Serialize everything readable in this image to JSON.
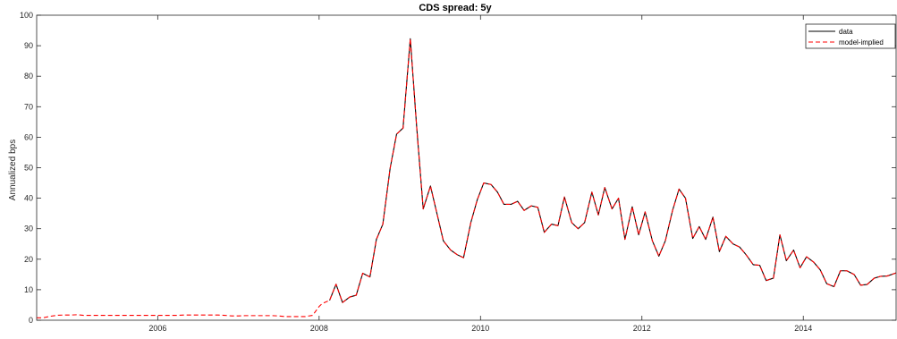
{
  "chart_data": {
    "type": "line",
    "title": "CDS spread: 5y",
    "xlabel": "",
    "ylabel": "Annualized bps",
    "xlim": [
      2004.5,
      2015.15
    ],
    "ylim": [
      0,
      100
    ],
    "x_ticks": [
      2006,
      2008,
      2010,
      2012,
      2014
    ],
    "y_ticks": [
      0,
      10,
      20,
      30,
      40,
      50,
      60,
      70,
      80,
      90,
      100
    ],
    "grid": false,
    "legend_position": "top-right",
    "series": [
      {
        "name": "data",
        "color": "#000000",
        "style": "solid",
        "x": [
          2008.13,
          2008.21,
          2008.29,
          2008.38,
          2008.46,
          2008.54,
          2008.63,
          2008.71,
          2008.79,
          2008.88,
          2008.96,
          2009.04,
          2009.13,
          2009.21,
          2009.29,
          2009.38,
          2009.46,
          2009.54,
          2009.63,
          2009.71,
          2009.79,
          2009.88,
          2009.96,
          2010.04,
          2010.13,
          2010.21,
          2010.29,
          2010.38,
          2010.46,
          2010.54,
          2010.63,
          2010.71,
          2010.79,
          2010.88,
          2010.96,
          2011.04,
          2011.13,
          2011.21,
          2011.29,
          2011.38,
          2011.46,
          2011.54,
          2011.63,
          2011.71,
          2011.79,
          2011.88,
          2011.96,
          2012.04,
          2012.13,
          2012.21,
          2012.29,
          2012.38,
          2012.46,
          2012.54,
          2012.63,
          2012.71,
          2012.79,
          2012.88,
          2012.96,
          2013.04,
          2013.13,
          2013.21,
          2013.29,
          2013.38,
          2013.46,
          2013.54,
          2013.63,
          2013.71,
          2013.79,
          2013.88,
          2013.96,
          2014.04,
          2014.13,
          2014.21,
          2014.29,
          2014.38,
          2014.46,
          2014.54,
          2014.63,
          2014.71,
          2014.79,
          2014.88,
          2014.96,
          2015.04,
          2015.15
        ],
        "y": [
          6.5,
          11.8,
          5.8,
          7.6,
          8.2,
          15.4,
          14.2,
          26.5,
          31.5,
          49.8,
          61.0,
          63.0,
          92.3,
          63.0,
          36.5,
          44.0,
          35.0,
          26.0,
          23.0,
          21.5,
          20.5,
          32.0,
          39.5,
          45.0,
          44.5,
          42.0,
          38.0,
          38.0,
          39.0,
          36.0,
          37.5,
          37.0,
          28.8,
          31.5,
          31.0,
          40.4,
          32.0,
          30.0,
          32.0,
          42.0,
          34.5,
          43.5,
          36.5,
          40.0,
          26.5,
          37.2,
          28.0,
          35.5,
          26.0,
          21.0,
          26.0,
          36.0,
          43.0,
          40.0,
          26.8,
          30.7,
          26.5,
          33.8,
          22.5,
          27.5,
          25.0,
          24.0,
          21.5,
          18.2,
          18.0,
          13.0,
          13.8,
          28.0,
          19.5,
          23.0,
          17.2,
          20.8,
          19.0,
          16.5,
          12.0,
          11.0,
          16.2,
          16.2,
          15.0,
          11.5,
          11.7,
          13.8,
          14.4,
          14.5,
          15.5
        ]
      },
      {
        "name": "model-implied",
        "color": "#ff0000",
        "style": "dashed",
        "x": [
          2004.5,
          2004.58,
          2004.67,
          2004.75,
          2004.83,
          2004.92,
          2005.0,
          2005.08,
          2005.17,
          2005.25,
          2005.33,
          2005.42,
          2005.5,
          2005.58,
          2005.67,
          2005.75,
          2005.83,
          2005.92,
          2006.0,
          2006.08,
          2006.17,
          2006.25,
          2006.33,
          2006.42,
          2006.5,
          2006.58,
          2006.67,
          2006.75,
          2006.83,
          2006.92,
          2007.0,
          2007.08,
          2007.17,
          2007.25,
          2007.33,
          2007.42,
          2007.5,
          2007.58,
          2007.67,
          2007.75,
          2007.83,
          2007.92,
          2008.0,
          2008.04,
          2008.13,
          2008.21,
          2008.29,
          2008.38,
          2008.46,
          2008.54,
          2008.63,
          2008.71,
          2008.79,
          2008.88,
          2008.96,
          2009.04,
          2009.13,
          2009.21,
          2009.29,
          2009.38,
          2009.46,
          2009.54,
          2009.63,
          2009.71,
          2009.79,
          2009.88,
          2009.96,
          2010.04,
          2010.13,
          2010.21,
          2010.29,
          2010.38,
          2010.46,
          2010.54,
          2010.63,
          2010.71,
          2010.79,
          2010.88,
          2010.96,
          2011.04,
          2011.13,
          2011.21,
          2011.29,
          2011.38,
          2011.46,
          2011.54,
          2011.63,
          2011.71,
          2011.79,
          2011.88,
          2011.96,
          2012.04,
          2012.13,
          2012.21,
          2012.29,
          2012.38,
          2012.46,
          2012.54,
          2012.63,
          2012.71,
          2012.79,
          2012.88,
          2012.96,
          2013.04,
          2013.13,
          2013.21,
          2013.29,
          2013.38,
          2013.46,
          2013.54,
          2013.63,
          2013.71,
          2013.79,
          2013.88,
          2013.96,
          2014.04,
          2014.13,
          2014.21,
          2014.29,
          2014.38,
          2014.46,
          2014.54,
          2014.63,
          2014.71,
          2014.79,
          2014.88,
          2014.96,
          2015.04,
          2015.15
        ],
        "y": [
          0.8,
          0.8,
          1.3,
          1.6,
          1.7,
          1.7,
          1.8,
          1.6,
          1.6,
          1.6,
          1.6,
          1.6,
          1.6,
          1.6,
          1.6,
          1.6,
          1.6,
          1.6,
          1.6,
          1.6,
          1.6,
          1.6,
          1.7,
          1.7,
          1.7,
          1.7,
          1.7,
          1.7,
          1.6,
          1.4,
          1.4,
          1.5,
          1.5,
          1.5,
          1.5,
          1.5,
          1.4,
          1.2,
          1.2,
          1.2,
          1.2,
          1.6,
          4.5,
          5.5,
          6.5,
          11.8,
          5.8,
          7.6,
          8.2,
          15.4,
          14.2,
          26.5,
          31.5,
          49.8,
          61.0,
          63.0,
          92.3,
          63.0,
          36.5,
          44.0,
          35.0,
          26.0,
          23.0,
          21.5,
          20.5,
          32.0,
          39.5,
          45.0,
          44.5,
          42.0,
          38.0,
          38.0,
          39.0,
          36.0,
          37.5,
          37.0,
          28.8,
          31.5,
          31.0,
          40.4,
          32.0,
          30.0,
          32.0,
          42.0,
          34.5,
          43.5,
          36.5,
          40.0,
          26.5,
          37.2,
          28.0,
          35.5,
          26.0,
          21.0,
          26.0,
          36.0,
          43.0,
          40.0,
          26.8,
          30.7,
          26.5,
          33.8,
          22.5,
          27.5,
          25.0,
          24.0,
          21.5,
          18.2,
          18.0,
          13.0,
          13.8,
          28.0,
          19.5,
          23.0,
          17.2,
          20.8,
          19.0,
          16.5,
          12.0,
          11.0,
          16.2,
          16.2,
          15.0,
          11.5,
          11.7,
          13.8,
          14.4,
          14.5,
          15.5
        ]
      }
    ]
  }
}
